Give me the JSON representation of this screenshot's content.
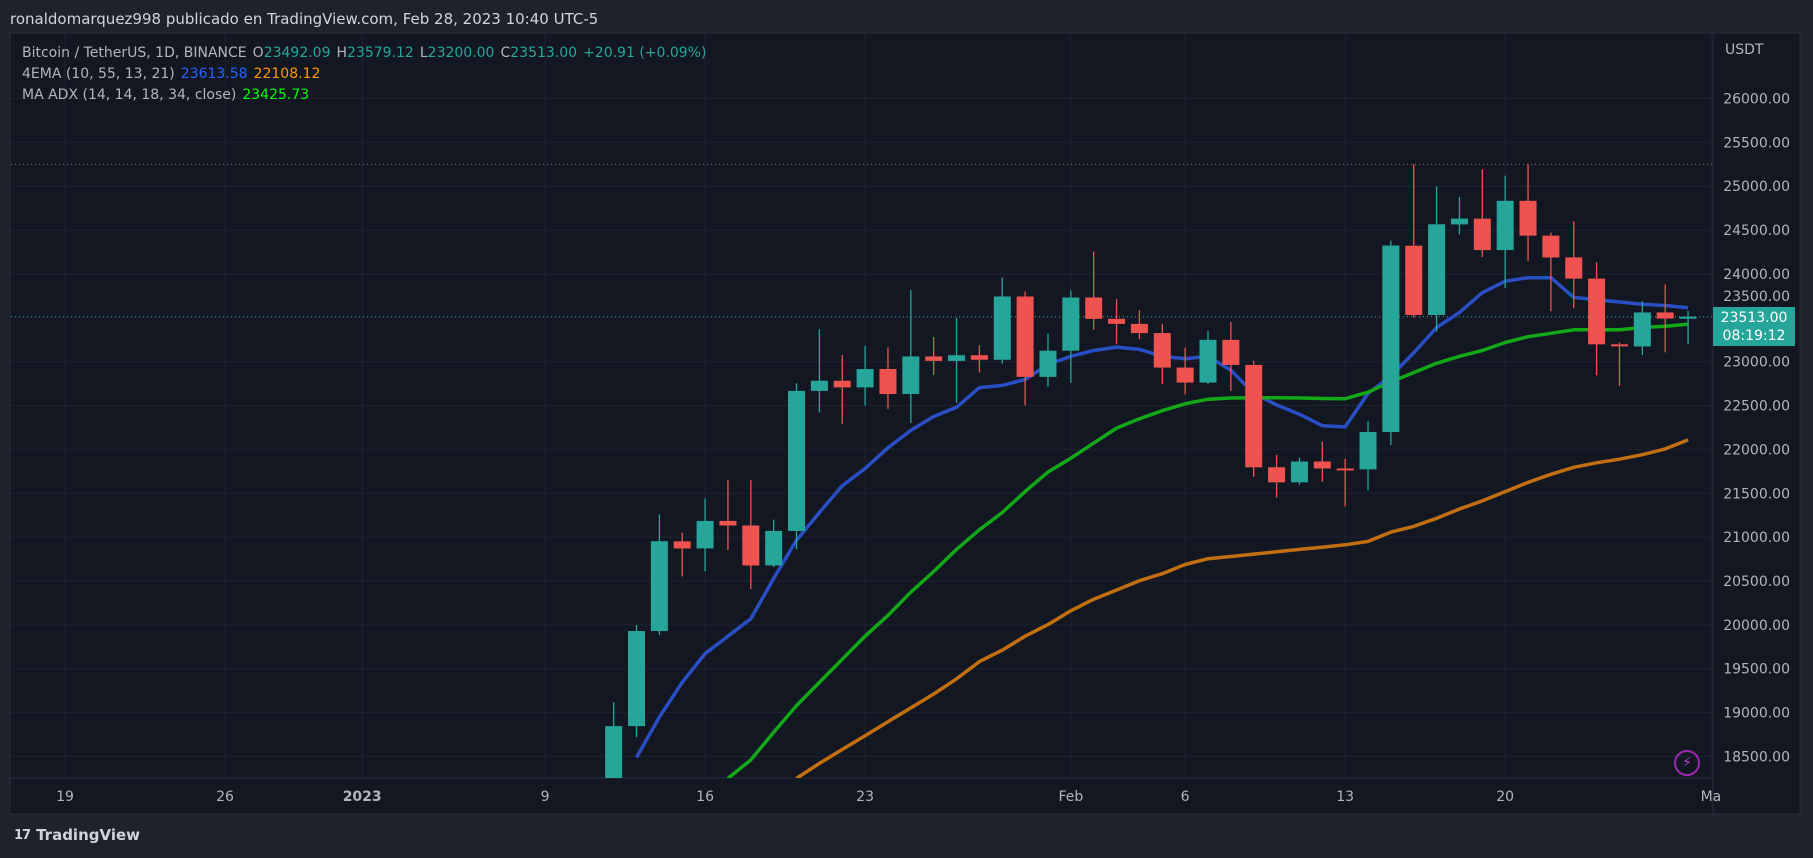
{
  "header": {
    "text": "ronaldomarquez998 publicado en TradingView.com, Feb 28, 2023 10:40 UTC-5"
  },
  "legend": {
    "symbol": "Bitcoin / TetherUS, 1D, BINANCE",
    "o_label": "O",
    "o": "23492.09",
    "h_label": "H",
    "h": "23579.12",
    "l_label": "L",
    "l": "23200.00",
    "c_label": "C",
    "c": "23513.00",
    "change": "+20.91 (+0.09%)",
    "ema_name": "4EMA (10, 55, 13, 21)",
    "ema_v1": "23613.58",
    "ema_v2": "22108.12",
    "adx_name": "MA ADX (14, 14, 18, 34, close)",
    "adx_v": "23425.73"
  },
  "price_axis": {
    "unit": "USDT",
    "current_price": "23513.00",
    "countdown": "08:19:12"
  },
  "footer": {
    "brand": "TradingView",
    "logo": "17"
  },
  "colors": {
    "up": "#26a69a",
    "down": "#ef5350",
    "ema_fast": "#2a4fc4",
    "ema_slow": "#c26f12",
    "adx_ma": "#12a818",
    "legend_blue": "#2962ff",
    "legend_orange": "#ff9800",
    "legend_green": "#00ff00",
    "lightning": "#9c27b0"
  },
  "icons": [
    "tradingview-logo-icon",
    "lightning-icon"
  ],
  "chart_data": {
    "type": "candlestick",
    "ylim": [
      18250,
      26650
    ],
    "y_ticks": [
      "18500.00",
      "19000.00",
      "19500.00",
      "20000.00",
      "20500.00",
      "21000.00",
      "21500.00",
      "22000.00",
      "22500.00",
      "23000.00",
      "23500.00",
      "24000.00",
      "24500.00",
      "25000.00",
      "25500.00",
      "26000.00"
    ],
    "x_ticks": [
      {
        "label": "19",
        "date": "2022-12-19"
      },
      {
        "label": "26",
        "date": "2022-12-26"
      },
      {
        "label": "2023",
        "date": "2023-01-01"
      },
      {
        "label": "9",
        "date": "2023-01-09"
      },
      {
        "label": "16",
        "date": "2023-01-16"
      },
      {
        "label": "23",
        "date": "2023-01-23"
      },
      {
        "label": "Feb",
        "date": "2023-02-01"
      },
      {
        "label": "6",
        "date": "2023-02-06"
      },
      {
        "label": "13",
        "date": "2023-02-13"
      },
      {
        "label": "20",
        "date": "2023-02-20"
      },
      {
        "label": "Ma",
        "date": "2023-03-01"
      }
    ],
    "xlim": [
      "2022-12-17",
      "2023-03-02"
    ],
    "high_line": 25250,
    "last_price": 23513,
    "candles": [
      [
        "2023-01-12",
        17943,
        19117,
        17910,
        18846
      ],
      [
        "2023-01-13",
        18846,
        19999,
        18720,
        19930
      ],
      [
        "2023-01-14",
        19930,
        21258,
        19886,
        20954
      ],
      [
        "2023-01-15",
        20952,
        21050,
        20551,
        20871
      ],
      [
        "2023-01-16",
        20872,
        21440,
        20611,
        21185
      ],
      [
        "2023-01-17",
        21185,
        21650,
        20853,
        21133
      ],
      [
        "2023-01-18",
        21133,
        21650,
        20407,
        20677
      ],
      [
        "2023-01-19",
        20677,
        21200,
        20659,
        21071
      ],
      [
        "2023-01-20",
        21071,
        22755,
        20861,
        22667
      ],
      [
        "2023-01-21",
        22667,
        23371,
        22422,
        22783
      ],
      [
        "2023-01-22",
        22783,
        23078,
        22292,
        22707
      ],
      [
        "2023-01-23",
        22707,
        23180,
        22500,
        22916
      ],
      [
        "2023-01-24",
        22917,
        23162,
        22462,
        22632
      ],
      [
        "2023-01-25",
        22632,
        23816,
        22300,
        23060
      ],
      [
        "2023-01-26",
        23060,
        23282,
        22850,
        23009
      ],
      [
        "2023-01-27",
        23009,
        23500,
        22534,
        23074
      ],
      [
        "2023-01-28",
        23074,
        23189,
        22878,
        23022
      ],
      [
        "2023-01-29",
        23022,
        23960,
        22978,
        23743
      ],
      [
        "2023-01-30",
        23743,
        23800,
        22500,
        22827
      ],
      [
        "2023-01-31",
        22827,
        23320,
        22714,
        23125
      ],
      [
        "2023-02-01",
        23125,
        23812,
        22760,
        23732
      ],
      [
        "2023-02-02",
        23732,
        24255,
        23366,
        23488
      ],
      [
        "2023-02-03",
        23488,
        23715,
        23204,
        23431
      ],
      [
        "2023-02-04",
        23431,
        23587,
        23257,
        23326
      ],
      [
        "2023-02-05",
        23326,
        23433,
        22743,
        22933
      ],
      [
        "2023-02-06",
        22933,
        23160,
        22628,
        22762
      ],
      [
        "2023-02-07",
        22762,
        23350,
        22745,
        23249
      ],
      [
        "2023-02-08",
        23249,
        23453,
        22665,
        22963
      ],
      [
        "2023-02-09",
        22963,
        23011,
        21688,
        21796
      ],
      [
        "2023-02-10",
        21797,
        21938,
        21451,
        21625
      ],
      [
        "2023-02-11",
        21625,
        21906,
        21599,
        21862
      ],
      [
        "2023-02-12",
        21862,
        22090,
        21630,
        21783
      ],
      [
        "2023-02-13",
        21783,
        21894,
        21351,
        21773
      ],
      [
        "2023-02-14",
        21773,
        22322,
        21532,
        22199
      ],
      [
        "2023-02-15",
        22199,
        24380,
        22047,
        24324
      ],
      [
        "2023-02-16",
        24322,
        25250,
        23505,
        23532
      ],
      [
        "2023-02-17",
        23532,
        24998,
        23344,
        24566
      ],
      [
        "2023-02-18",
        24565,
        24876,
        24450,
        24631
      ],
      [
        "2023-02-19",
        24631,
        25192,
        24192,
        24272
      ],
      [
        "2023-02-20",
        24272,
        25121,
        23840,
        24834
      ],
      [
        "2023-02-21",
        24834,
        25250,
        24148,
        24437
      ],
      [
        "2023-02-22",
        24437,
        24472,
        23574,
        24188
      ],
      [
        "2023-02-23",
        24189,
        24600,
        23609,
        23947
      ],
      [
        "2023-02-24",
        23947,
        24133,
        22844,
        23198
      ],
      [
        "2023-02-25",
        23198,
        23219,
        22723,
        23175
      ],
      [
        "2023-02-26",
        23174,
        23689,
        23077,
        23561
      ],
      [
        "2023-02-27",
        23561,
        23880,
        23106,
        23492
      ],
      [
        "2023-02-28",
        23492,
        23579,
        23200,
        23513
      ]
    ],
    "series": [
      {
        "name": "4EMA (10, 55, 13, 21)",
        "key": "ema_fast",
        "start": "2023-01-13",
        "values": [
          18490,
          18950,
          19344,
          19673,
          19871,
          20069,
          20530,
          20965,
          21281,
          21585,
          21782,
          22020,
          22217,
          22375,
          22480,
          22705,
          22730,
          22797,
          22968,
          23061,
          23127,
          23166,
          23140,
          23061,
          23034,
          23061,
          22903,
          22639,
          22507,
          22402,
          22270,
          22257,
          22639,
          22836,
          23100,
          23390,
          23562,
          23786,
          23917,
          23957,
          23957,
          23733,
          23707,
          23680,
          23654,
          23641,
          23614
        ]
      },
      {
        "name": "MA ADX (14, 14, 18, 34, close)",
        "key": "adx_ma",
        "start": "2023-01-17",
        "values": [
          18250,
          18461,
          18777,
          19080,
          19344,
          19608,
          19871,
          20108,
          20372,
          20609,
          20860,
          21084,
          21281,
          21519,
          21743,
          21900,
          22072,
          22243,
          22349,
          22441,
          22520,
          22573,
          22586,
          22590,
          22590,
          22586,
          22580,
          22578,
          22652,
          22771,
          22876,
          22982,
          23061,
          23127,
          23219,
          23285,
          23324,
          23364,
          23364,
          23364,
          23390,
          23404,
          23426
        ]
      },
      {
        "name": "4EMA (10, 55, 13, 21)",
        "key": "ema_slow",
        "start": "2023-01-20",
        "values": [
          18250,
          18421,
          18579,
          18737,
          18896,
          19054,
          19212,
          19384,
          19581,
          19713,
          19871,
          20003,
          20161,
          20293,
          20398,
          20504,
          20583,
          20688,
          20754,
          20780,
          20807,
          20833,
          20860,
          20886,
          20913,
          20952,
          21057,
          21123,
          21215,
          21321,
          21413,
          21519,
          21624,
          21716,
          21796,
          21848,
          21888,
          21940,
          22006,
          22108
        ]
      }
    ]
  }
}
